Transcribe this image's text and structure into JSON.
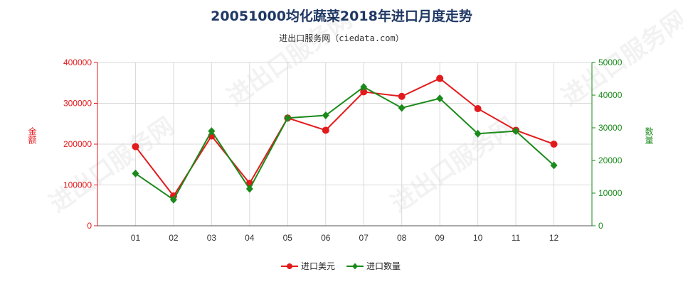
{
  "title": "20051000均化蔬菜2018年进口月度走势",
  "subtitle": "进出口服务网（ciedata.com）",
  "watermark": "进出口服务网",
  "colors": {
    "amount": "#e31a1c",
    "quantity": "#1a8a1a",
    "grid": "#d9d9d9",
    "axis": "#555555"
  },
  "chart_data": {
    "type": "line",
    "categories": [
      "01",
      "02",
      "03",
      "04",
      "05",
      "06",
      "07",
      "08",
      "09",
      "10",
      "11",
      "12"
    ],
    "y_left": {
      "label": "金额",
      "ylim": [
        0,
        400000
      ],
      "ticks": [
        0,
        100000,
        200000,
        300000,
        400000
      ]
    },
    "y_right": {
      "label": "数量",
      "ylim": [
        0,
        50000
      ],
      "ticks": [
        0,
        10000,
        20000,
        30000,
        40000,
        50000
      ]
    },
    "series": [
      {
        "name": "进口美元",
        "axis": "left",
        "color": "#e31a1c",
        "marker": "circle",
        "values": [
          194000,
          73000,
          220000,
          104000,
          264000,
          234000,
          328000,
          317000,
          361000,
          287000,
          234000,
          200000
        ]
      },
      {
        "name": "进口数量",
        "axis": "right",
        "color": "#1a8a1a",
        "marker": "diamond",
        "values": [
          16000,
          8000,
          29000,
          11300,
          33000,
          33800,
          42500,
          36100,
          39000,
          28200,
          29000,
          18500
        ]
      }
    ],
    "grid": true,
    "legend": "bottom-center"
  }
}
